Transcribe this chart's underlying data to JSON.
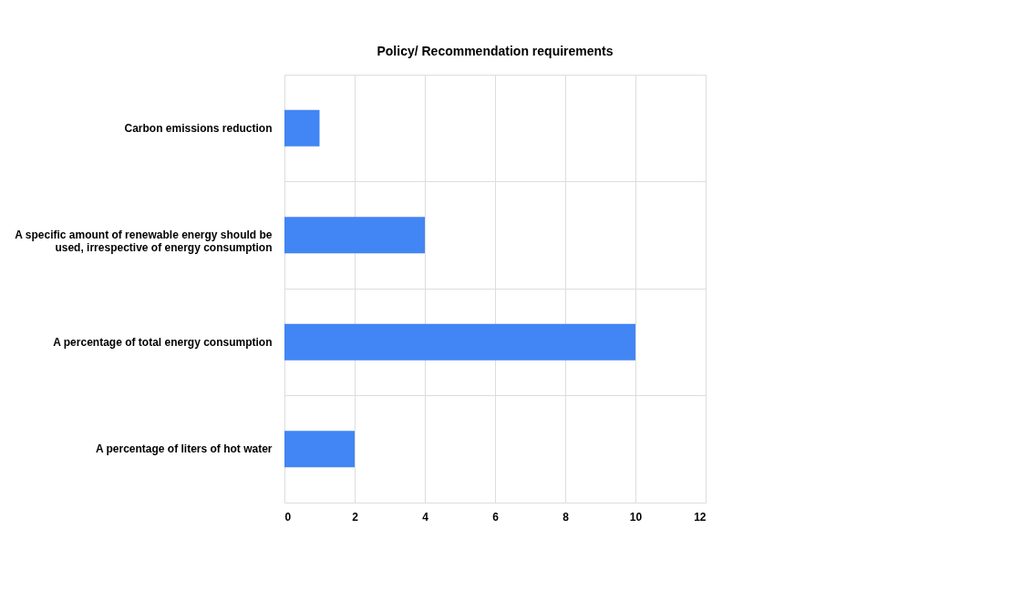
{
  "chart_data": {
    "type": "bar",
    "orientation": "horizontal",
    "title": "Policy/ Recommendation requirements",
    "categories": [
      "Carbon emissions reduction",
      "A specific amount of renewable energy should be used, irrespective of energy consumption",
      "A percentage of total energy consumption",
      "A percentage of liters of hot water"
    ],
    "values": [
      1,
      4,
      10,
      2
    ],
    "color": "#4285f4",
    "xlim": [
      0,
      12
    ],
    "xticks": [
      0,
      2,
      4,
      6,
      8,
      10,
      12
    ],
    "grid": true
  }
}
